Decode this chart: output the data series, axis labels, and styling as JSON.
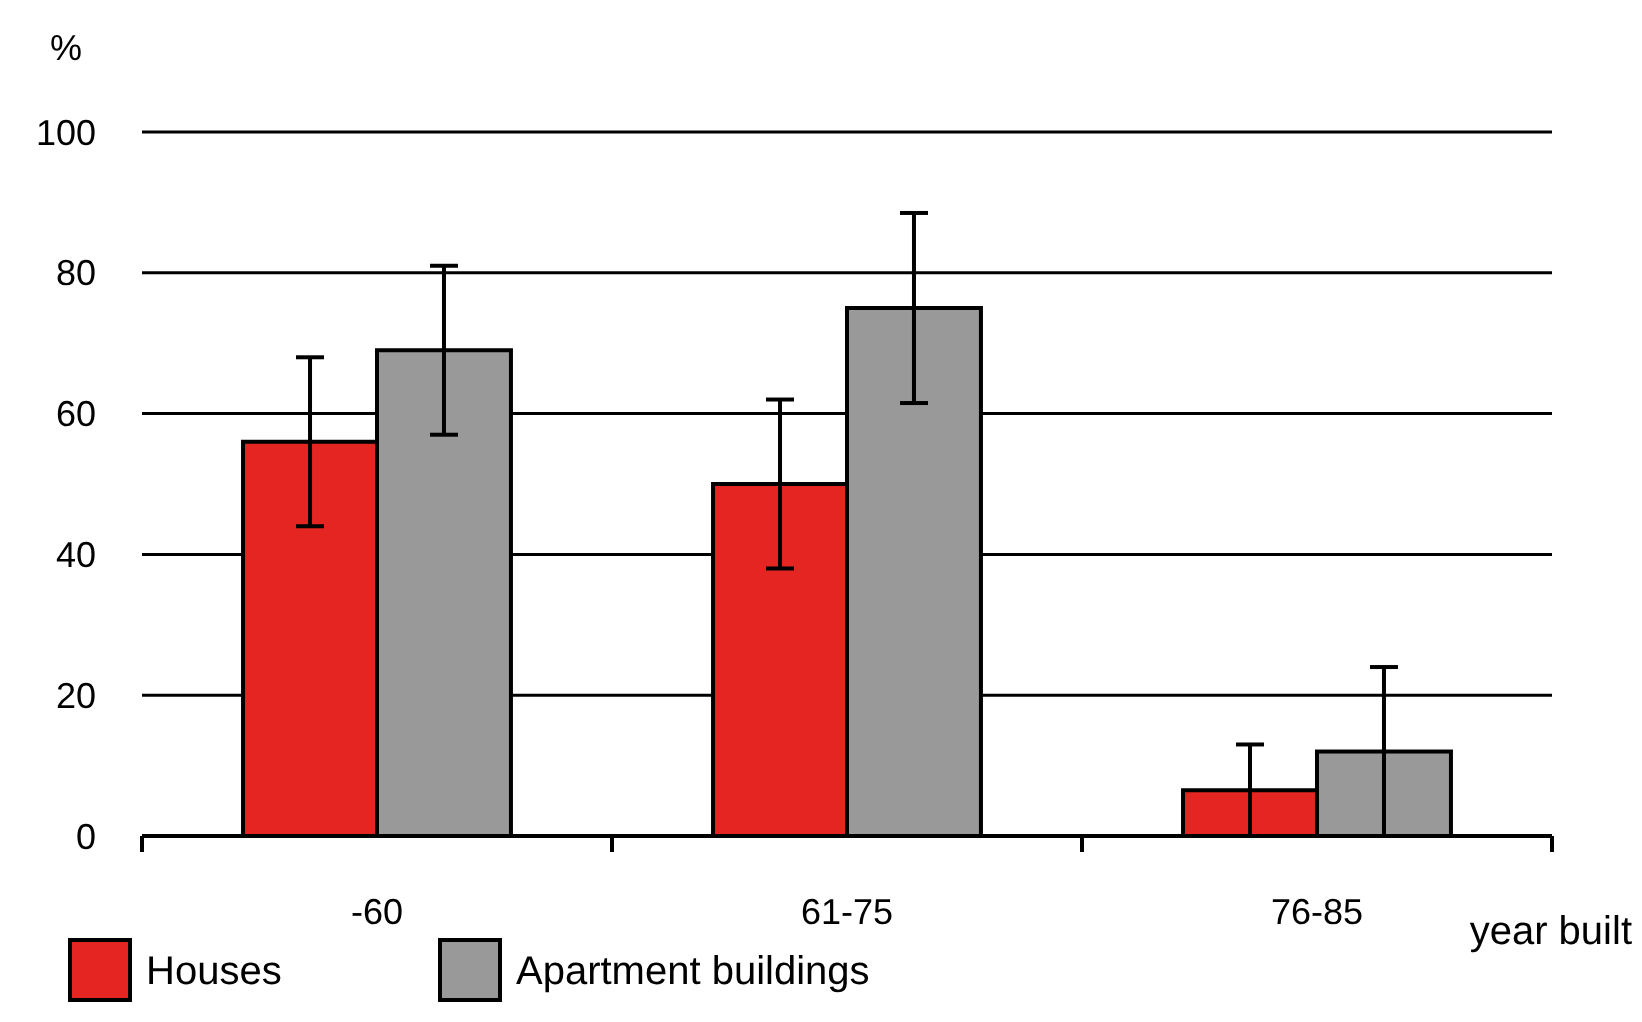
{
  "chart_data": {
    "type": "bar",
    "ylabel": "%",
    "xlabel": "year built",
    "categories": [
      "-60",
      "61-75",
      "76-85"
    ],
    "series": [
      {
        "name": "Houses",
        "color": "#e52521",
        "values": [
          56,
          50,
          6.5
        ],
        "errors": [
          12,
          12,
          6.5
        ]
      },
      {
        "name": "Apartment buildings",
        "color": "#999999",
        "values": [
          69,
          75,
          12
        ],
        "errors": [
          12,
          13.5,
          12
        ]
      }
    ],
    "ylim": [
      0,
      100
    ],
    "yticks": [
      0,
      20,
      40,
      60,
      80,
      100
    ],
    "grid": "y",
    "legend": "bottom"
  }
}
